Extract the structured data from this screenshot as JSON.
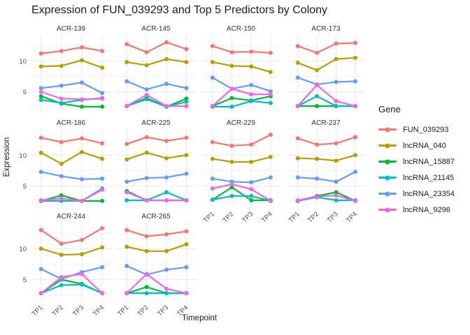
{
  "chart_data": {
    "type": "line",
    "title": "Expression of FUN_039293 and Top 5 Predictors by Colony",
    "xlabel": "Timepoint",
    "ylabel": "Expression",
    "legend_title": "Gene",
    "legend_position": "right",
    "grid": true,
    "x": [
      "TP1",
      "TP2",
      "TP3",
      "TP4"
    ],
    "yticks": [
      5,
      10
    ],
    "ylim": [
      1.8,
      14.2
    ],
    "series": [
      {
        "name": "FUN_039293",
        "color": "#F8766D"
      },
      {
        "name": "lncRNA_040",
        "color": "#B79F00"
      },
      {
        "name": "lncRNA_15887",
        "color": "#00BA38"
      },
      {
        "name": "lncRNA_21145",
        "color": "#00BFC4"
      },
      {
        "name": "lncRNA_23354",
        "color": "#619CFF"
      },
      {
        "name": "lncRNA_9296",
        "color": "#F564E3"
      }
    ],
    "facets": [
      {
        "name": "ACR-139",
        "values": {
          "FUN_039293": [
            11.2,
            11.6,
            12.2,
            11.6
          ],
          "lncRNA_040": [
            9.1,
            9.2,
            10.1,
            8.9
          ],
          "lncRNA_15887": [
            4.3,
            3.1,
            2.6,
            2.6
          ],
          "lncRNA_21145": [
            3.7,
            3.2,
            3.7,
            4.0
          ],
          "lncRNA_23354": [
            5.6,
            6.0,
            6.5,
            4.8
          ],
          "lncRNA_9296": [
            5.0,
            3.9,
            3.8,
            3.9
          ]
        }
      },
      {
        "name": "ACR-145",
        "values": {
          "FUN_039293": [
            12.7,
            11.4,
            13.0,
            11.9
          ],
          "lncRNA_040": [
            9.8,
            9.3,
            10.3,
            9.8
          ],
          "lncRNA_15887": [
            2.7,
            4.0,
            2.6,
            3.9
          ],
          "lncRNA_21145": [
            2.7,
            3.8,
            2.6,
            3.4
          ],
          "lncRNA_23354": [
            6.7,
            5.4,
            6.3,
            5.6
          ],
          "lncRNA_9296": [
            2.7,
            4.5,
            2.7,
            2.7
          ]
        }
      },
      {
        "name": "ACR-150",
        "values": {
          "FUN_039293": [
            12.4,
            11.4,
            11.5,
            11.3
          ],
          "lncRNA_040": [
            9.8,
            9.2,
            9.1,
            8.2
          ],
          "lncRNA_15887": [
            2.7,
            4.0,
            3.6,
            4.3
          ],
          "lncRNA_21145": [
            2.6,
            2.6,
            3.5,
            3.2
          ],
          "lncRNA_23354": [
            7.3,
            5.5,
            6.1,
            5.1
          ],
          "lncRNA_9296": [
            2.7,
            5.5,
            4.6,
            4.6
          ]
        }
      },
      {
        "name": "ACR-173",
        "values": {
          "FUN_039293": [
            12.4,
            11.3,
            12.8,
            12.9
          ],
          "lncRNA_040": [
            9.7,
            8.5,
            10.3,
            10.5
          ],
          "lncRNA_15887": [
            2.7,
            2.7,
            2.7,
            2.7
          ],
          "lncRNA_21145": [
            2.7,
            4.3,
            2.7,
            2.7
          ],
          "lncRNA_23354": [
            7.3,
            6.2,
            6.6,
            6.7
          ],
          "lncRNA_9296": [
            2.7,
            6.1,
            3.5,
            2.7
          ]
        }
      },
      {
        "name": "ACR-186",
        "values": {
          "FUN_039293": [
            12.8,
            12.1,
            12.7,
            11.9
          ],
          "lncRNA_040": [
            10.4,
            8.6,
            10.5,
            9.4
          ],
          "lncRNA_15887": [
            2.6,
            3.5,
            2.6,
            2.6
          ],
          "lncRNA_21145": [
            2.6,
            2.6,
            2.6,
            4.6
          ],
          "lncRNA_23354": [
            7.3,
            6.6,
            6.1,
            6.2
          ],
          "lncRNA_9296": [
            2.7,
            3.0,
            2.6,
            4.4
          ]
        }
      },
      {
        "name": "ACR-225",
        "values": {
          "FUN_039293": [
            11.8,
            12.9,
            12.3,
            12.8
          ],
          "lncRNA_040": [
            9.3,
            10.4,
            9.5,
            10.0
          ],
          "lncRNA_15887": [
            4.2,
            2.7,
            2.7,
            2.7
          ],
          "lncRNA_21145": [
            2.7,
            2.7,
            4.0,
            2.7
          ],
          "lncRNA_23354": [
            5.7,
            6.3,
            6.4,
            7.0
          ],
          "lncRNA_9296": [
            4.0,
            2.7,
            2.7,
            2.7
          ]
        }
      },
      {
        "name": "ACR-229",
        "values": {
          "FUN_039293": [
            12.1,
            11.5,
            11.7,
            13.3
          ],
          "lncRNA_040": [
            9.4,
            8.9,
            8.9,
            9.7
          ],
          "lncRNA_15887": [
            2.8,
            4.8,
            2.7,
            2.7
          ],
          "lncRNA_21145": [
            2.8,
            3.4,
            3.4,
            2.6
          ],
          "lncRNA_23354": [
            6.2,
            5.7,
            5.6,
            6.4
          ],
          "lncRNA_9296": [
            4.6,
            5.3,
            4.5,
            2.6
          ]
        }
      },
      {
        "name": "ACR-237",
        "values": {
          "FUN_039293": [
            12.7,
            11.7,
            11.9,
            12.9
          ],
          "lncRNA_040": [
            9.5,
            9.4,
            9.1,
            10.0
          ],
          "lncRNA_15887": [
            2.6,
            3.4,
            4.0,
            2.6
          ],
          "lncRNA_21145": [
            2.6,
            3.2,
            2.7,
            2.7
          ],
          "lncRNA_23354": [
            6.4,
            6.2,
            5.7,
            7.3
          ],
          "lncRNA_9296": [
            2.7,
            3.3,
            3.5,
            2.6
          ]
        }
      },
      {
        "name": "ACR-244",
        "values": {
          "FUN_039293": [
            13.0,
            10.8,
            11.4,
            13.3
          ],
          "lncRNA_040": [
            10.0,
            9.0,
            9.1,
            10.2
          ],
          "lncRNA_15887": [
            2.8,
            5.0,
            4.3,
            2.8
          ],
          "lncRNA_21145": [
            2.8,
            4.1,
            4.2,
            2.8
          ],
          "lncRNA_23354": [
            6.7,
            5.1,
            6.2,
            7.0
          ],
          "lncRNA_9296": [
            2.8,
            5.4,
            5.9,
            2.8
          ]
        }
      },
      {
        "name": "ACR-265",
        "values": {
          "FUN_039293": [
            13.0,
            12.0,
            12.3,
            12.8
          ],
          "lncRNA_040": [
            10.3,
            9.6,
            9.6,
            10.7
          ],
          "lncRNA_15887": [
            2.8,
            3.8,
            2.8,
            2.8
          ],
          "lncRNA_21145": [
            2.8,
            2.8,
            2.8,
            2.8
          ],
          "lncRNA_23354": [
            7.2,
            5.8,
            6.6,
            7.0
          ],
          "lncRNA_9296": [
            2.8,
            5.9,
            3.5,
            2.8
          ]
        }
      }
    ]
  }
}
